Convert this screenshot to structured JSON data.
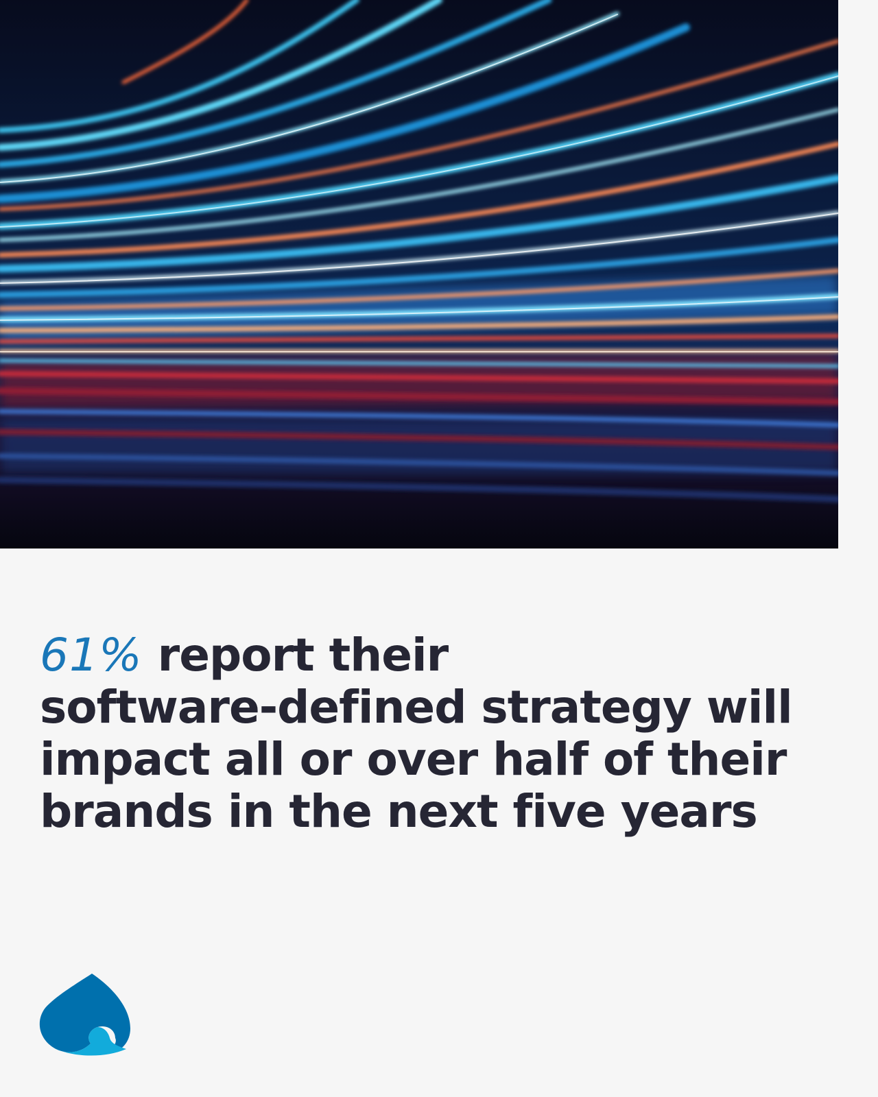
{
  "headline": {
    "stat": "61%",
    "line1": " report their",
    "line2": "software-defined strategy will",
    "line3": "impact all or over half of their",
    "line4": "brands in the next five years"
  },
  "colors": {
    "background": "#f6f6f6",
    "text": "#262634",
    "accent": "#1a77b8",
    "logo_primary": "#0070ad",
    "logo_secondary": "#12abdb"
  },
  "logo": {
    "icon": "spade-drop-logo"
  },
  "hero": {
    "icon": "light-trails-image"
  }
}
